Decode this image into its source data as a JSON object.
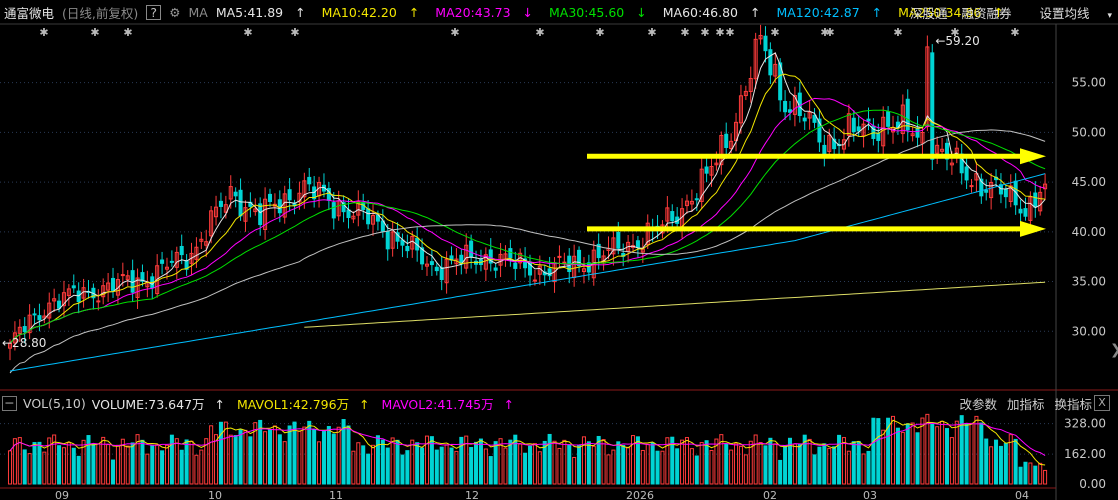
{
  "header": {
    "stock_name": "通富微电",
    "mode": "(日线,前复权)",
    "help_label": "?",
    "ma_label": "MA",
    "ma5": "MA5:41.89",
    "ma5_arrow": "↑",
    "ma10": "MA10:42.20",
    "ma10_arrow": "↑",
    "ma20": "MA20:43.73",
    "ma20_arrow": "↓",
    "ma30": "MA30:45.60",
    "ma30_arrow": "↓",
    "ma60": "MA60:46.80",
    "ma60_arrow": "↑",
    "ma120": "MA120:42.87",
    "ma120_arrow": "↑",
    "ma250": "MA250:34.86",
    "ma250_arrow": "↑",
    "menu": [
      "深股通",
      "融资融券",
      "设置均线"
    ]
  },
  "volume_header": {
    "label": "VOL(5,10)",
    "volume": "VOLUME:73.647万",
    "volume_arrow": "↑",
    "mavol1": "MAVOL1:42.796万",
    "mavol1_arrow": "↑",
    "mavol2": "MAVOL2:41.745万",
    "mavol2_arrow": "↑",
    "buttons": [
      "改参数",
      "加指标",
      "换指标"
    ],
    "close": "X"
  },
  "colors": {
    "up": "#ff3b3b",
    "down": "#00d4d4",
    "ma5": "#e6e6e6",
    "ma10": "#f2e600",
    "ma20": "#ff00ff",
    "ma30": "#00e000",
    "ma60": "#c0c0c0",
    "ma120": "#00bfff",
    "ma250": "#dddd66",
    "arrow": "#ffff00",
    "grid": "#2a3a55"
  },
  "chart_data": {
    "type": "candlestick",
    "price_axis": {
      "ticks": [
        30,
        35,
        40,
        45,
        50,
        55
      ],
      "labels": [
        "30.00",
        "35.00",
        "40.00",
        "45.00",
        "50.00",
        "55.00"
      ],
      "range": [
        25.5,
        60.5
      ]
    },
    "volume_axis": {
      "ticks": [
        0,
        162,
        328
      ],
      "labels": [
        "0.00",
        "162.00",
        "328.00"
      ],
      "range": [
        0,
        380
      ],
      "unit": "万"
    },
    "annotations": {
      "high": "59.20",
      "low": "28.80"
    },
    "x_labels": [
      "09",
      "10",
      "11",
      "12",
      "2026",
      "02",
      "03",
      "04"
    ],
    "arrows": [
      {
        "price": 47.6
      },
      {
        "price": 40.3
      }
    ],
    "current": {
      "MA5": 41.89,
      "MA10": 42.2,
      "MA20": 43.73,
      "MA30": 45.6,
      "MA60": 46.8,
      "MA120": 42.87,
      "MA250": 34.86,
      "VOLUME": 73.647,
      "MAVOL1": 42.796,
      "MAVOL2": 41.745
    }
  }
}
